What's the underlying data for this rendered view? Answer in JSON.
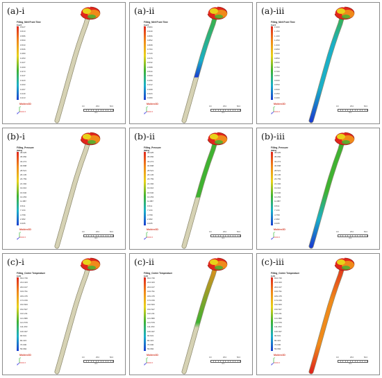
{
  "panels": [
    {
      "label": "(a)-i",
      "title": "Filling_Melt Front Time",
      "unit": "[sec]",
      "ticks": [
        "0.627",
        "0.610",
        "0.586",
        "0.560",
        "0.533",
        "0.506",
        "0.480",
        "0.453",
        "0.427",
        "0.400",
        "0.373",
        "0.347",
        "0.320",
        "0.293",
        "0.267",
        "0.240",
        "0.213"
      ],
      "brand": "Moldex3D",
      "fill": "a",
      "stage": 1
    },
    {
      "label": "(a)-ii",
      "title": "Filling_Melt Front Time",
      "unit": "[sec]",
      "ticks": [
        "0.984",
        "0.940",
        "0.896",
        "0.852",
        "0.808",
        "0.764",
        "0.720",
        "0.676",
        "0.632",
        "0.588",
        "0.544",
        "0.500",
        "0.456",
        "0.412",
        "0.368",
        "0.324",
        "0.280"
      ],
      "brand": "Moldex3D",
      "fill": "a",
      "stage": 2
    },
    {
      "label": "(a)-iii",
      "title": "Filling_Melt Front Time",
      "unit": "[sec]",
      "ticks": [
        "1.200",
        "1.150",
        "1.100",
        "1.050",
        "1.000",
        "0.950",
        "0.900",
        "0.850",
        "0.800",
        "0.750",
        "0.700",
        "0.650",
        "0.600",
        "0.550",
        "0.500",
        "0.450",
        "0.400"
      ],
      "brand": "Moldex3D",
      "fill": "a",
      "stage": 3
    },
    {
      "label": "(b)-i",
      "title": "Filling_Pressure",
      "unit": "[MPa]",
      "ticks": [
        "38.025",
        "35.650",
        "33.274",
        "30.898",
        "28.521",
        "26.145",
        "23.769",
        "21.392",
        "19.016",
        "16.640",
        "14.263",
        "11.887",
        "9.511",
        "7.134",
        "4.758",
        "2.382",
        "0.005"
      ],
      "brand": "Moldex3D",
      "fill": "b",
      "stage": 1
    },
    {
      "label": "(b)-ii",
      "title": "Filling_Pressure",
      "unit": "[MPa]",
      "ticks": [
        "38.025",
        "35.650",
        "33.274",
        "30.898",
        "28.521",
        "26.145",
        "23.769",
        "21.392",
        "19.016",
        "16.640",
        "14.263",
        "11.887",
        "9.511",
        "7.134",
        "4.758",
        "2.382",
        "0.005"
      ],
      "brand": "Moldex3D",
      "fill": "b",
      "stage": 2
    },
    {
      "label": "(b)-iii",
      "title": "Filling_Pressure",
      "unit": "[MPa]",
      "ticks": [
        "38.025",
        "35.650",
        "33.274",
        "30.898",
        "28.521",
        "26.145",
        "23.769",
        "21.392",
        "19.016",
        "16.640",
        "14.263",
        "11.887",
        "9.511",
        "7.134",
        "4.758",
        "2.382",
        "0.005"
      ],
      "brand": "Moldex3D",
      "fill": "b",
      "stage": 3
    },
    {
      "label": "(c)-i",
      "title": "Filling_Center Temperature",
      "unit": "[oC]",
      "ticks": [
        "224.739",
        "214.423",
        "204.107",
        "193.791",
        "183.475",
        "173.159",
        "162.843",
        "152.527",
        "142.211",
        "131.895",
        "121.579",
        "111.263",
        "100.947",
        "90.631",
        "80.315",
        "70.000",
        "59.684"
      ],
      "brand": "Moldex3D",
      "fill": "c",
      "stage": 1
    },
    {
      "label": "(c)-ii",
      "title": "Filling_Center Temperature",
      "unit": "[oC]",
      "ticks": [
        "224.739",
        "214.423",
        "204.107",
        "193.791",
        "183.475",
        "173.159",
        "162.843",
        "152.527",
        "142.211",
        "131.895",
        "121.579",
        "111.263",
        "100.947",
        "90.631",
        "80.315",
        "70.000",
        "59.684"
      ],
      "brand": "Moldex3D",
      "fill": "c",
      "stage": 2
    },
    {
      "label": "(c)-iii",
      "title": "Filling_Center Temperature",
      "unit": "[oC]",
      "ticks": [
        "224.739",
        "214.423",
        "204.107",
        "193.791",
        "183.475",
        "173.159",
        "162.843",
        "152.527",
        "142.211",
        "131.895",
        "121.579",
        "111.263",
        "100.947",
        "90.631",
        "80.315",
        "70.000",
        "59.684"
      ],
      "brand": "Moldex3D",
      "fill": "c",
      "stage": 3
    }
  ],
  "scale": {
    "left": "0.0",
    "mid": "25.0",
    "right": "50.0",
    "unit": "mm"
  },
  "axis_labels": {
    "x": "X",
    "y": "Y",
    "z": "Z"
  },
  "colors": {
    "red": "#e0261c",
    "orange": "#f08a1a",
    "yellow": "#e8d21a",
    "green": "#3fb332",
    "cyan": "#1ab0c8",
    "blue": "#1a3fd0",
    "unfilled": "#d6d2b4",
    "unfilled_edge": "#8d8a70"
  }
}
